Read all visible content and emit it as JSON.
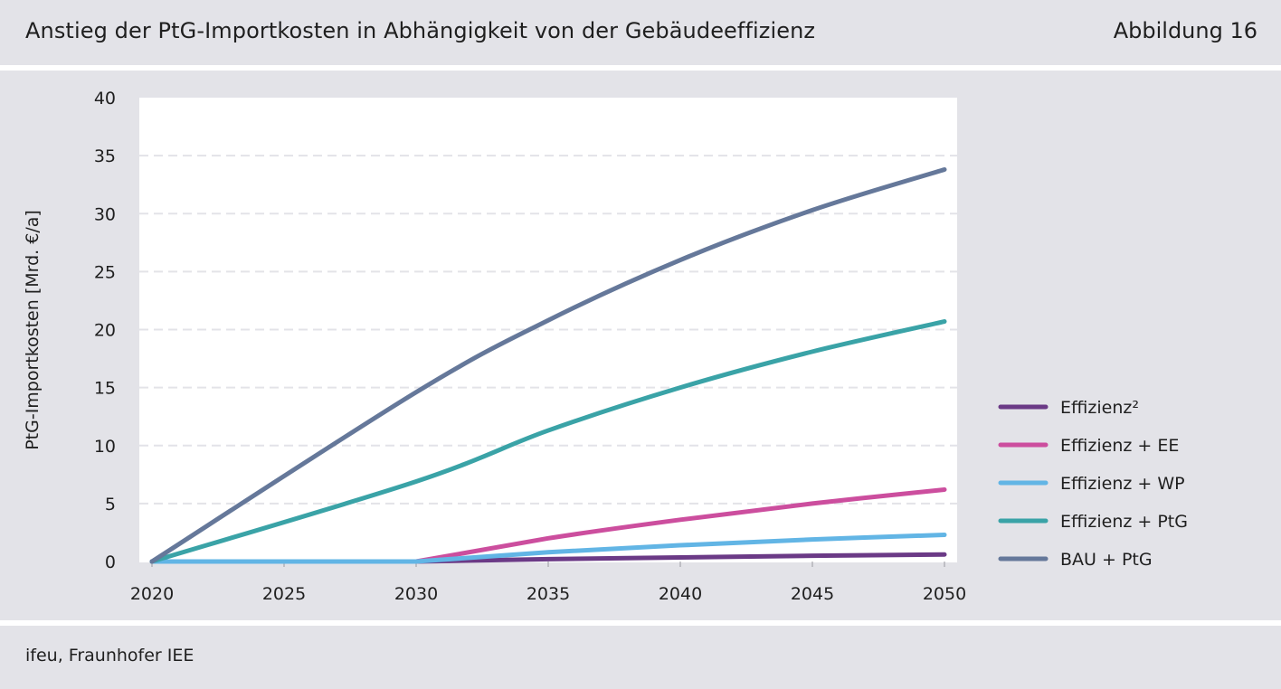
{
  "header": {
    "title": "Anstieg der PtG-Importkosten in Abhängigkeit von der Gebäudeeffizienz",
    "figure_number": "Abbildung 16"
  },
  "footer": {
    "source": "ifeu, Fraunhofer IEE"
  },
  "chart_data": {
    "type": "line",
    "title": "Anstieg der PtG-Importkosten in Abhängigkeit von der Gebäudeeffizienz",
    "xlabel": "",
    "ylabel": "PtG-Importkosten [Mrd. €/a]",
    "x": [
      2020,
      2030,
      2035,
      2040,
      2045,
      2050
    ],
    "xlim": [
      2020,
      2050
    ],
    "xticks": [
      "2020",
      "2025",
      "2030",
      "2035",
      "2040",
      "2045",
      "2050"
    ],
    "ylim": [
      0,
      40
    ],
    "yticks": [
      "0",
      "5",
      "10",
      "15",
      "20",
      "25",
      "30",
      "35",
      "40"
    ],
    "grid": "horizontal dashed",
    "legend_position": "right",
    "series": [
      {
        "name": "Effizienz²",
        "color": "#6b3a86",
        "values": [
          0,
          0,
          0.2,
          0.35,
          0.5,
          0.6
        ]
      },
      {
        "name": "Effizienz + EE",
        "color": "#cc4e9e",
        "values": [
          0,
          0,
          2.0,
          3.6,
          5.0,
          6.2
        ]
      },
      {
        "name": "Effizienz + WP",
        "color": "#62b5e5",
        "values": [
          0,
          0,
          0.8,
          1.4,
          1.9,
          2.3
        ]
      },
      {
        "name": "Effizienz + PtG",
        "color": "#3aa3a7",
        "values": [
          0,
          6.9,
          11.3,
          15.0,
          18.1,
          20.7
        ]
      },
      {
        "name": "BAU + PtG",
        "color": "#65789a",
        "values": [
          0,
          14.6,
          20.8,
          26.0,
          30.3,
          33.8
        ]
      }
    ]
  }
}
